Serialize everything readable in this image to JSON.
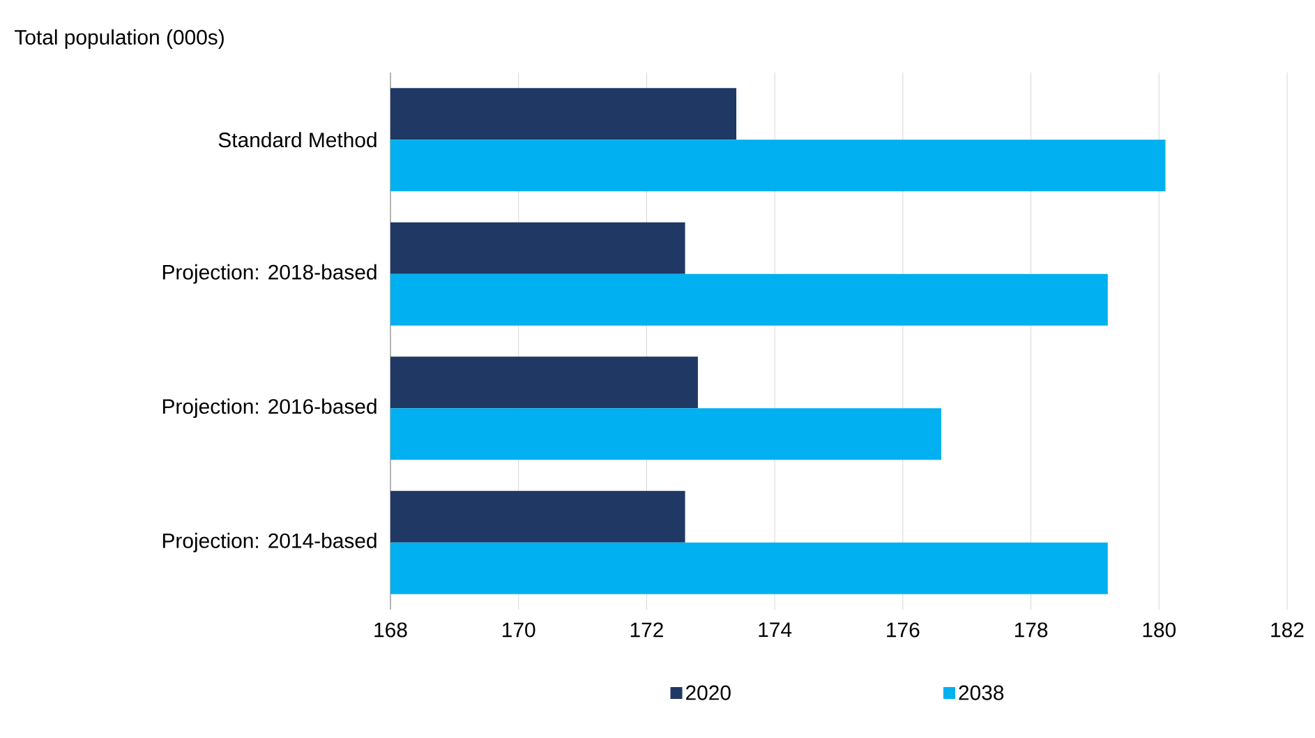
{
  "chart_data": {
    "type": "bar",
    "orientation": "horizontal",
    "title": "Total population (000s)",
    "categories": [
      "Standard Method",
      "Projection: 2018-based",
      "Projection: 2016-based",
      "Projection: 2014-based"
    ],
    "series": [
      {
        "name": "2020",
        "color": "#1f3864",
        "values": [
          173.4,
          172.6,
          172.8,
          172.6
        ]
      },
      {
        "name": "2038",
        "color": "#00b0f0",
        "values": [
          180.1,
          179.2,
          176.6,
          179.2
        ]
      }
    ],
    "xlim": [
      168,
      182
    ],
    "xticks": [
      168,
      170,
      172,
      174,
      176,
      178,
      180,
      182
    ],
    "grid": "x",
    "legend": "bottom"
  }
}
